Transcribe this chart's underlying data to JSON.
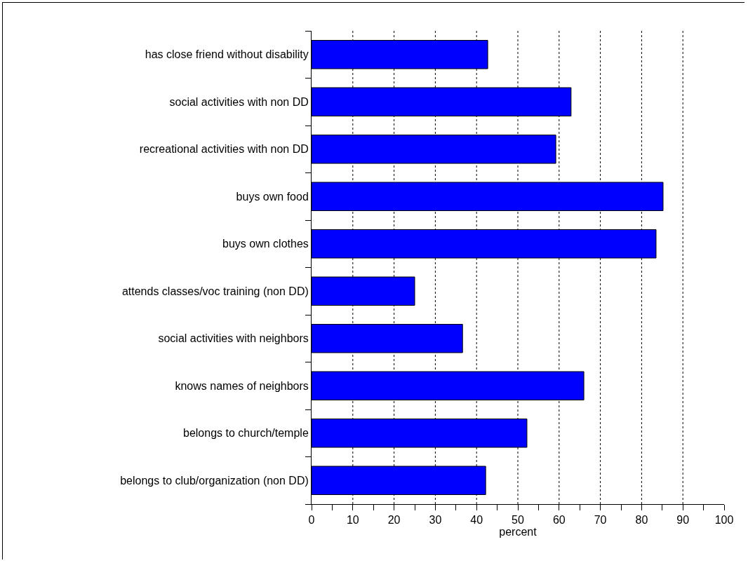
{
  "chart_data": {
    "type": "bar",
    "orientation": "horizontal",
    "xlabel": "percent",
    "categories": [
      "has close friend without disability",
      "social activities with non DD",
      "recreational activities with non DD",
      "buys own food",
      "buys own clothes",
      "attends classes/voc training (non DD)",
      "social activities with neighbors",
      "knows names of neighbors",
      "belongs to church/temple",
      "belongs to club/organization (non DD)"
    ],
    "values": [
      42.7,
      62.9,
      59.2,
      85.2,
      83.5,
      25.0,
      36.6,
      66.0,
      52.2,
      42.2
    ],
    "color": "#0000ff",
    "xlim": [
      0,
      100
    ],
    "xticks": [
      0,
      {
        "value": 5,
        "label": null
      },
      10,
      {
        "value": 15,
        "label": null
      },
      20,
      {
        "value": 25,
        "label": null
      },
      30,
      {
        "value": 35,
        "label": null
      },
      40,
      {
        "value": 45,
        "label": null
      },
      50,
      {
        "value": 55,
        "label": null
      },
      60,
      {
        "value": 65,
        "label": null
      },
      70,
      {
        "value": 75,
        "label": null
      },
      80,
      {
        "value": 85,
        "label": null
      },
      90,
      {
        "value": 95,
        "label": null
      },
      100
    ],
    "grid": "x"
  }
}
